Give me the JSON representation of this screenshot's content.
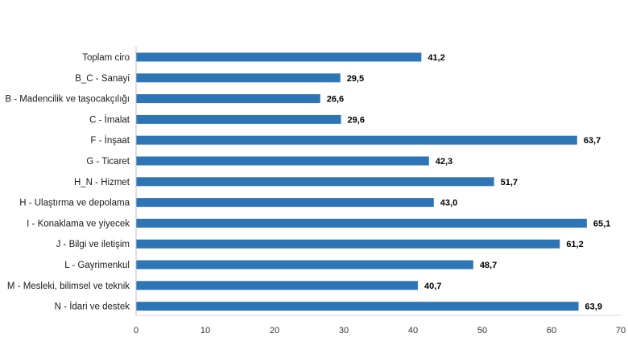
{
  "chart_data": {
    "type": "bar",
    "orientation": "horizontal",
    "title": "",
    "xlabel": "",
    "ylabel": "",
    "xlim": [
      0,
      70
    ],
    "x_ticks": [
      0,
      10,
      20,
      30,
      40,
      50,
      60,
      70
    ],
    "grid": false,
    "legend": "none",
    "bar_color": "#2e75b6",
    "categories": [
      "Toplam ciro",
      "B_C - Sanayi",
      "B - Madencilik ve taşocakçılığı",
      "C - İmalat",
      "F - İnşaat",
      "G - Ticaret",
      "H_N - Hizmet",
      "H - Ulaştırma ve depolama",
      "I - Konaklama ve yiyecek",
      "J - Bilgi ve iletişim",
      "L - Gayrimenkul",
      "M - Mesleki, bilimsel ve teknik",
      "N - İdari ve destek"
    ],
    "values": [
      41.2,
      29.5,
      26.6,
      29.6,
      63.7,
      42.3,
      51.7,
      43.0,
      65.1,
      61.2,
      48.7,
      40.7,
      63.9
    ],
    "value_labels": [
      "41,2",
      "29,5",
      "26,6",
      "29,6",
      "63,7",
      "42,3",
      "51,7",
      "43,0",
      "65,1",
      "61,2",
      "48,7",
      "40,7",
      "63,9"
    ]
  }
}
